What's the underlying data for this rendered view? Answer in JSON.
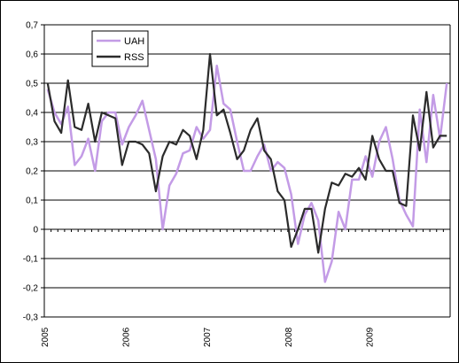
{
  "chart_data": {
    "type": "line",
    "title": "",
    "xlabel": "",
    "ylabel": "",
    "ylim": [
      -0.3,
      0.7
    ],
    "y_ticks": [
      "0,7",
      "0,6",
      "0,5",
      "0,4",
      "0,3",
      "0,2",
      "0,1",
      "0",
      "-0,1",
      "-0,2",
      "-0,3"
    ],
    "x_ticks": [
      "2005",
      "2006",
      "2007",
      "2008",
      "2009"
    ],
    "x_start_year": 2005,
    "grid": true,
    "legend_position": "top-left",
    "series": [
      {
        "name": "UAH",
        "color": "#c39be6",
        "values": [
          0.48,
          0.4,
          0.36,
          0.42,
          0.22,
          0.25,
          0.31,
          0.2,
          0.37,
          0.4,
          0.4,
          0.29,
          0.35,
          0.39,
          0.44,
          0.34,
          0.24,
          0.0,
          0.15,
          0.19,
          0.26,
          0.27,
          0.35,
          0.31,
          0.34,
          0.56,
          0.43,
          0.41,
          0.3,
          0.2,
          0.2,
          0.25,
          0.29,
          0.2,
          0.23,
          0.21,
          0.12,
          -0.05,
          0.05,
          0.09,
          0.03,
          -0.18,
          -0.11,
          0.06,
          0.0,
          0.17,
          0.17,
          0.25,
          0.18,
          0.3,
          0.35,
          0.24,
          0.1,
          0.05,
          0.01,
          0.41,
          0.23,
          0.46,
          0.31,
          0.5
        ]
      },
      {
        "name": "RSS",
        "color": "#2b2b2b",
        "values": [
          0.5,
          0.37,
          0.33,
          0.51,
          0.35,
          0.34,
          0.43,
          0.3,
          0.4,
          0.39,
          0.38,
          0.22,
          0.3,
          0.3,
          0.29,
          0.26,
          0.13,
          0.25,
          0.3,
          0.29,
          0.34,
          0.32,
          0.24,
          0.34,
          0.6,
          0.39,
          0.41,
          0.33,
          0.24,
          0.27,
          0.34,
          0.38,
          0.27,
          0.24,
          0.13,
          0.1,
          -0.06,
          0.0,
          0.07,
          0.07,
          -0.08,
          0.07,
          0.16,
          0.15,
          0.19,
          0.18,
          0.21,
          0.17,
          0.32,
          0.24,
          0.2,
          0.2,
          0.09,
          0.08,
          0.39,
          0.27,
          0.47,
          0.28,
          0.32,
          0.32
        ]
      }
    ]
  }
}
